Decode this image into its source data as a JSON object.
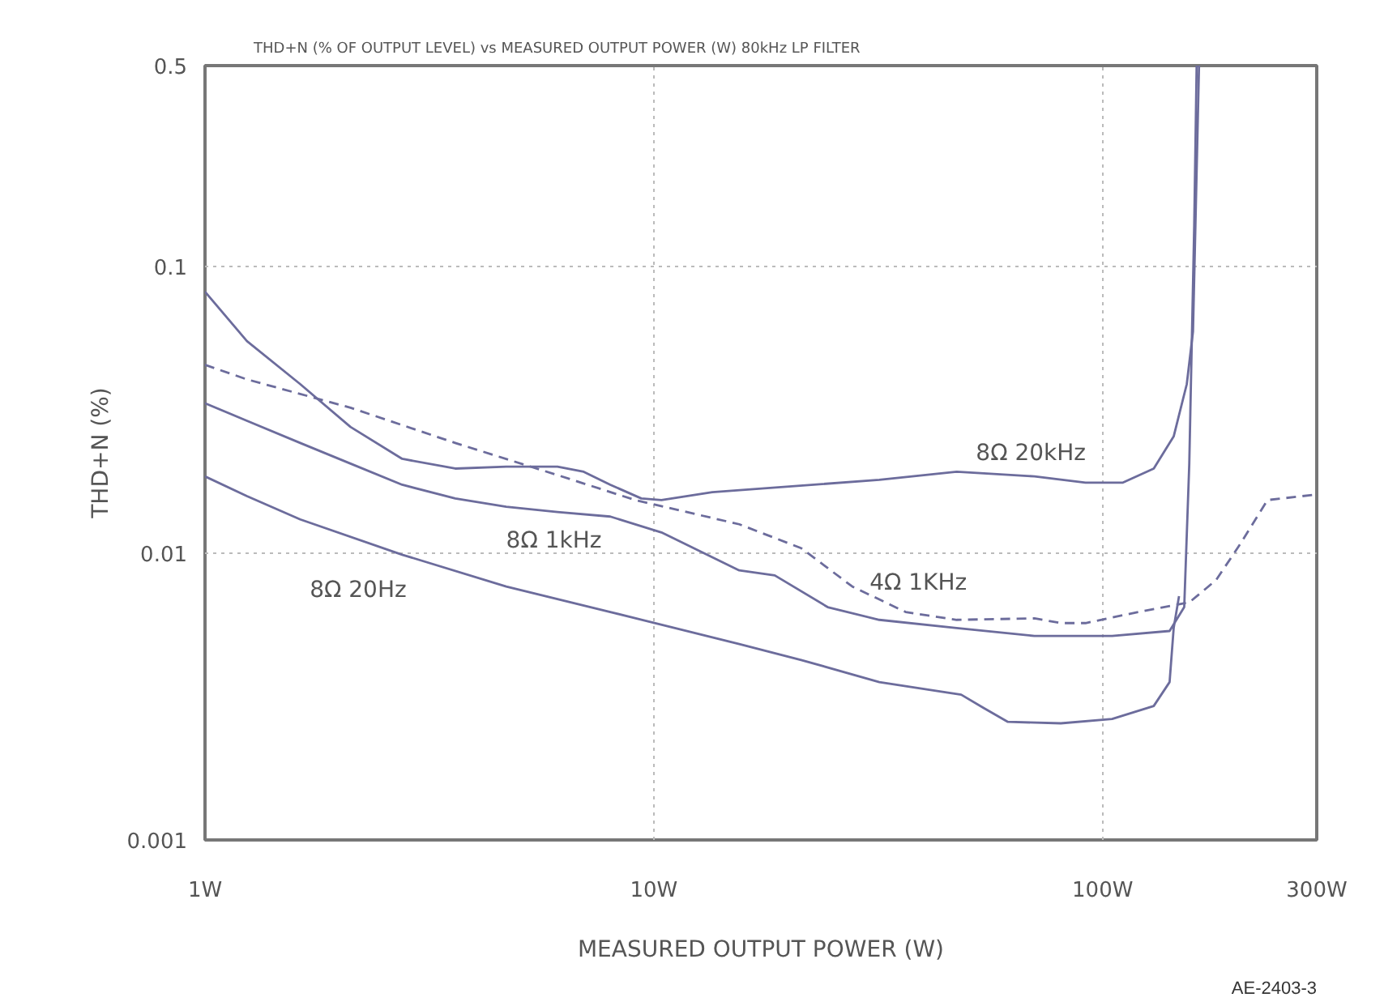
{
  "chart_data": {
    "type": "line",
    "title": "THD+N (% OF OUTPUT LEVEL) vs MEASURED OUTPUT POWER (W) 80kHz LP FILTER",
    "xlabel": "MEASURED OUTPUT POWER (W)",
    "ylabel": "THD+N (%)",
    "log": "xy",
    "grid": true,
    "legend": false,
    "marker": "none",
    "xlim": [
      1,
      300
    ],
    "ylim": [
      0.001,
      0.5
    ],
    "xticks": [
      {
        "value": 1,
        "label": "1W"
      },
      {
        "value": 10,
        "label": "10W"
      },
      {
        "value": 100,
        "label": "100W"
      },
      {
        "value": 300,
        "label": "300W"
      }
    ],
    "yticks": [
      0.001,
      0.01,
      0.1,
      0.5
    ],
    "series": [
      {
        "name": "8Ω  20kHz",
        "color": "#6c6c9c",
        "line_style": "solid",
        "x": [
          1,
          1.24,
          1.63,
          2.11,
          2.75,
          3.61,
          4.69,
          6.1,
          6.98,
          8.0,
          9.38,
          10.4,
          13.5,
          31.8,
          47.3,
          70.5,
          91.6,
          111,
          130,
          144,
          154,
          159,
          161,
          164
        ],
        "values": [
          0.0815,
          0.0548,
          0.0388,
          0.0275,
          0.0213,
          0.0197,
          0.02,
          0.02,
          0.0192,
          0.0173,
          0.0155,
          0.0153,
          0.0163,
          0.018,
          0.0192,
          0.0185,
          0.0176,
          0.0176,
          0.0197,
          0.0255,
          0.0388,
          0.0592,
          0.139,
          0.5
        ]
      },
      {
        "name": "4Ω  1KHz",
        "color": "#6c6c9c",
        "line_style": "dashed",
        "x": [
          1,
          1.24,
          2.11,
          3.61,
          6.1,
          9.09,
          15.5,
          21.3,
          27.7,
          36.4,
          47.3,
          70.5,
          80.7,
          91.6,
          120,
          156,
          179,
          203,
          233,
          300
        ],
        "values": [
          0.0453,
          0.0403,
          0.0321,
          0.0242,
          0.0187,
          0.0153,
          0.0126,
          0.0104,
          0.00764,
          0.00623,
          0.00585,
          0.00592,
          0.0057,
          0.0057,
          0.00623,
          0.00673,
          0.00805,
          0.0108,
          0.0153,
          0.016
        ]
      },
      {
        "name": "8Ω  1kHz",
        "color": "#6c6c9c",
        "line_style": "solid",
        "x": [
          1,
          1.24,
          1.63,
          2.11,
          2.75,
          3.61,
          4.69,
          6.1,
          8.0,
          10.4,
          15.5,
          18.6,
          24.4,
          31.8,
          47.3,
          70.5,
          105,
          141,
          152,
          156,
          160,
          162
        ],
        "values": [
          0.0333,
          0.0289,
          0.0242,
          0.0205,
          0.0173,
          0.0155,
          0.0145,
          0.0139,
          0.0134,
          0.0118,
          0.0087,
          0.00836,
          0.00648,
          0.00585,
          0.00548,
          0.00514,
          0.00514,
          0.00535,
          0.00648,
          0.0205,
          0.139,
          0.5
        ]
      },
      {
        "name": "8Ω  20Hz",
        "color": "#6c6c9c",
        "line_style": "solid",
        "x": [
          1,
          1.24,
          1.63,
          2.75,
          4.69,
          8.0,
          15.5,
          21.3,
          31.8,
          43.7,
          48.4,
          54.2,
          61.5,
          80.7,
          105,
          130,
          141,
          144,
          148
        ],
        "values": [
          0.0185,
          0.0158,
          0.0131,
          0.00987,
          0.00764,
          0.00623,
          0.00482,
          0.00424,
          0.00355,
          0.00329,
          0.00321,
          0.00289,
          0.00258,
          0.00255,
          0.00264,
          0.00293,
          0.00355,
          0.00548,
          0.00708
        ]
      }
    ],
    "annotations": [
      "AE-2403-3"
    ]
  }
}
